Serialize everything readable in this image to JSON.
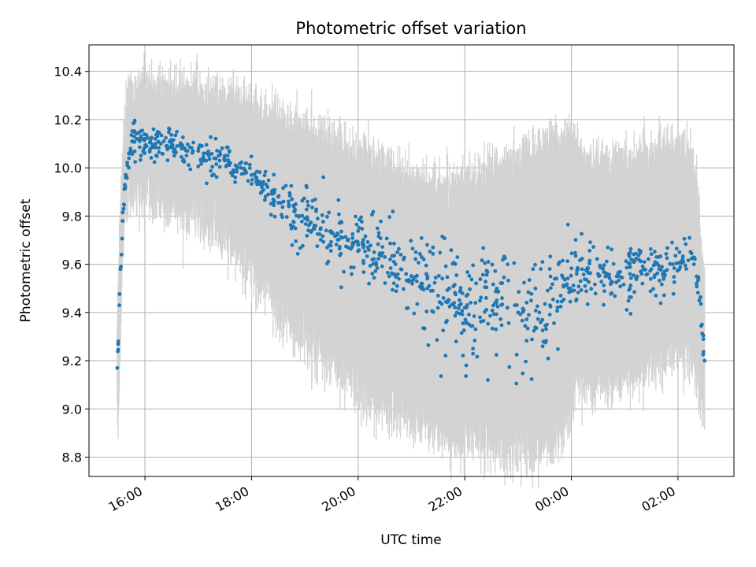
{
  "chart_data": {
    "type": "scatter",
    "title": "Photometric offset variation",
    "xlabel": "UTC time",
    "ylabel": "Photometric offset",
    "x_unit": "hours since 16:00 UTC",
    "xlim": [
      -1.05,
      11.05
    ],
    "ylim": [
      8.72,
      10.51
    ],
    "x_ticks": [
      {
        "value": 0,
        "label": "16:00"
      },
      {
        "value": 2,
        "label": "18:00"
      },
      {
        "value": 4,
        "label": "20:00"
      },
      {
        "value": 6,
        "label": "22:00"
      },
      {
        "value": 8,
        "label": "00:00"
      },
      {
        "value": 10,
        "label": "02:00"
      }
    ],
    "y_ticks": [
      8.8,
      9.0,
      9.2,
      9.4,
      9.6,
      9.8,
      10.0,
      10.2,
      10.4
    ],
    "y_tick_labels": [
      "8.8",
      "9.0",
      "9.2",
      "9.4",
      "9.6",
      "9.8",
      "10.0",
      "10.2",
      "10.4"
    ],
    "grid": true,
    "colors": {
      "points": "#1f77b4",
      "errorbars": "#d3d3d3",
      "grid": "#b0b0b0",
      "axes": "#000000"
    },
    "series": [
      {
        "name": "offset",
        "x": [
          -0.52,
          -0.5,
          -0.48,
          -0.46,
          -0.44,
          -0.42,
          -0.4,
          -0.38,
          -0.36,
          -0.33,
          -0.3,
          -0.27,
          -0.24,
          -0.2,
          -0.15,
          -0.1,
          -0.05,
          0.0,
          0.1,
          0.2,
          0.3,
          0.4,
          0.5,
          0.6,
          0.7,
          0.8,
          0.9,
          1.0,
          1.1,
          1.2,
          1.3,
          1.4,
          1.5,
          1.6,
          1.7,
          1.8,
          1.9,
          2.0,
          2.1,
          2.2,
          2.3,
          2.4,
          2.5,
          2.6,
          2.7,
          2.8,
          2.9,
          3.0,
          3.1,
          3.2,
          3.3,
          3.4,
          3.5,
          3.6,
          3.7,
          3.8,
          3.9,
          4.0,
          4.1,
          4.2,
          4.3,
          4.4,
          4.5,
          4.6,
          4.7,
          4.8,
          4.9,
          5.0,
          5.1,
          5.2,
          5.3,
          5.4,
          5.5,
          5.6,
          5.7,
          5.8,
          5.9,
          6.0,
          6.2,
          6.4,
          6.6,
          6.8,
          7.0,
          7.2,
          7.4,
          7.6,
          7.8,
          7.95,
          8.1,
          8.3,
          8.5,
          8.7,
          8.9,
          9.1,
          9.3,
          9.5,
          9.7,
          9.9,
          10.1,
          10.3,
          10.35,
          10.4,
          10.45,
          10.5
        ],
        "values": [
          9.17,
          9.28,
          9.43,
          9.58,
          9.64,
          9.78,
          9.83,
          9.93,
          9.96,
          10.01,
          10.04,
          10.08,
          10.11,
          10.13,
          10.12,
          10.11,
          10.12,
          10.12,
          10.11,
          10.1,
          10.1,
          10.09,
          10.1,
          10.09,
          10.08,
          10.07,
          10.07,
          10.07,
          10.06,
          10.05,
          10.04,
          10.03,
          10.03,
          10.02,
          10.01,
          10.0,
          9.98,
          9.97,
          9.95,
          9.93,
          9.92,
          9.9,
          9.88,
          9.86,
          9.84,
          9.82,
          9.8,
          9.79,
          9.77,
          9.76,
          9.75,
          9.74,
          9.73,
          9.72,
          9.71,
          9.7,
          9.69,
          9.68,
          9.67,
          9.66,
          9.65,
          9.64,
          9.63,
          9.62,
          9.6,
          9.58,
          9.56,
          9.55,
          9.53,
          9.52,
          9.5,
          9.49,
          9.47,
          9.46,
          9.45,
          9.44,
          9.43,
          9.42,
          9.44,
          9.46,
          9.45,
          9.42,
          9.4,
          9.39,
          9.4,
          9.43,
          9.47,
          9.5,
          9.56,
          9.57,
          9.56,
          9.55,
          9.55,
          9.56,
          9.57,
          9.58,
          9.59,
          9.6,
          9.61,
          9.6,
          9.55,
          9.45,
          9.35,
          9.2
        ],
        "spread": [
          0.02,
          0.02,
          0.02,
          0.02,
          0.02,
          0.02,
          0.03,
          0.03,
          0.03,
          0.03,
          0.03,
          0.04,
          0.04,
          0.04,
          0.04,
          0.04,
          0.04,
          0.04,
          0.04,
          0.04,
          0.04,
          0.04,
          0.04,
          0.04,
          0.04,
          0.04,
          0.04,
          0.04,
          0.04,
          0.04,
          0.04,
          0.04,
          0.04,
          0.04,
          0.04,
          0.04,
          0.04,
          0.04,
          0.04,
          0.04,
          0.05,
          0.05,
          0.05,
          0.05,
          0.05,
          0.06,
          0.06,
          0.06,
          0.06,
          0.06,
          0.06,
          0.06,
          0.07,
          0.07,
          0.07,
          0.07,
          0.07,
          0.07,
          0.08,
          0.08,
          0.08,
          0.08,
          0.08,
          0.09,
          0.09,
          0.09,
          0.1,
          0.1,
          0.1,
          0.1,
          0.11,
          0.11,
          0.11,
          0.12,
          0.12,
          0.12,
          0.12,
          0.12,
          0.13,
          0.13,
          0.13,
          0.13,
          0.13,
          0.13,
          0.13,
          0.12,
          0.1,
          0.08,
          0.06,
          0.06,
          0.06,
          0.06,
          0.06,
          0.06,
          0.06,
          0.06,
          0.06,
          0.06,
          0.06,
          0.06,
          0.05,
          0.05,
          0.05,
          0.05
        ],
        "error_low": [
          8.93,
          9.0,
          9.1,
          9.3,
          9.45,
          9.6,
          9.7,
          9.78,
          9.82,
          9.85,
          9.87,
          9.88,
          9.88,
          9.88,
          9.87,
          9.87,
          9.87,
          9.87,
          9.86,
          9.85,
          9.85,
          9.84,
          9.84,
          9.83,
          9.82,
          9.81,
          9.8,
          9.79,
          9.78,
          9.76,
          9.74,
          9.72,
          9.7,
          9.67,
          9.64,
          9.62,
          9.58,
          9.55,
          9.52,
          9.49,
          9.46,
          9.43,
          9.4,
          9.38,
          9.36,
          9.33,
          9.3,
          9.28,
          9.26,
          9.24,
          9.22,
          9.2,
          9.18,
          9.16,
          9.14,
          9.12,
          9.1,
          9.08,
          9.06,
          9.04,
          9.02,
          9.0,
          8.99,
          8.98,
          8.97,
          8.96,
          8.95,
          8.94,
          8.93,
          8.92,
          8.91,
          8.9,
          8.89,
          8.88,
          8.87,
          8.86,
          8.86,
          8.86,
          8.85,
          8.84,
          8.83,
          8.82,
          8.82,
          8.82,
          8.83,
          8.86,
          8.9,
          8.95,
          9.1,
          9.1,
          9.1,
          9.1,
          9.12,
          9.14,
          9.15,
          9.16,
          9.18,
          9.2,
          9.22,
          9.2,
          9.15,
          9.05,
          9.0,
          8.97
        ],
        "error_high": [
          9.4,
          9.55,
          9.75,
          9.85,
          9.95,
          10.05,
          10.15,
          10.22,
          10.26,
          10.28,
          10.3,
          10.32,
          10.33,
          10.34,
          10.35,
          10.35,
          10.36,
          10.36,
          10.36,
          10.36,
          10.36,
          10.35,
          10.35,
          10.35,
          10.34,
          10.34,
          10.34,
          10.34,
          10.33,
          10.33,
          10.33,
          10.32,
          10.32,
          10.31,
          10.3,
          10.29,
          10.28,
          10.27,
          10.26,
          10.25,
          10.24,
          10.23,
          10.22,
          10.21,
          10.2,
          10.19,
          10.19,
          10.18,
          10.17,
          10.16,
          10.15,
          10.14,
          10.13,
          10.12,
          10.11,
          10.1,
          10.09,
          10.08,
          10.07,
          10.06,
          10.05,
          10.04,
          10.03,
          10.02,
          10.01,
          10.0,
          9.99,
          9.98,
          9.97,
          9.96,
          9.96,
          9.96,
          9.96,
          9.96,
          9.96,
          9.96,
          9.96,
          9.96,
          9.98,
          10.0,
          10.02,
          10.04,
          10.06,
          10.08,
          10.1,
          10.12,
          10.14,
          10.16,
          10.1,
          10.05,
          10.05,
          10.05,
          10.05,
          10.05,
          10.06,
          10.08,
          10.1,
          10.1,
          10.1,
          10.05,
          9.95,
          9.8,
          9.65,
          9.5
        ]
      }
    ]
  }
}
